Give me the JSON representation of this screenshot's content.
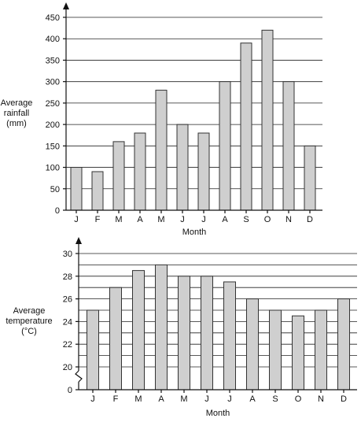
{
  "chart_data": [
    {
      "type": "bar",
      "categories": [
        "J",
        "F",
        "M",
        "A",
        "M",
        "J",
        "J",
        "A",
        "S",
        "O",
        "N",
        "D"
      ],
      "values": [
        100,
        90,
        160,
        180,
        280,
        200,
        180,
        300,
        390,
        420,
        300,
        150
      ],
      "title": "",
      "xlabel": "Month",
      "ylabel": [
        "Average",
        "rainfall",
        "(mm)"
      ],
      "ylim": [
        0,
        450
      ],
      "yticks": [
        0,
        50,
        100,
        150,
        200,
        250,
        300,
        350,
        400,
        450
      ],
      "grid": true,
      "legend": "none"
    },
    {
      "type": "bar",
      "categories": [
        "J",
        "F",
        "M",
        "A",
        "M",
        "J",
        "J",
        "A",
        "S",
        "O",
        "N",
        "D"
      ],
      "values": [
        25,
        27,
        28.5,
        29,
        28,
        28,
        27.5,
        26,
        25,
        24.5,
        25,
        26
      ],
      "title": "",
      "xlabel": "Month",
      "ylabel": [
        "Average",
        "temperature",
        "(°C)"
      ],
      "ylim": [
        18,
        30
      ],
      "yticks": [
        0,
        20,
        22,
        24,
        26,
        28,
        30
      ],
      "axis_break": true,
      "grid": true,
      "legend": "none"
    }
  ]
}
